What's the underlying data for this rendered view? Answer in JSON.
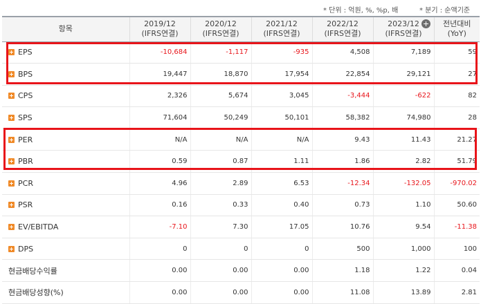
{
  "notes": {
    "unit": "* 단위 : 억원, %, %p, 배",
    "basis": "* 분기 : 순액기준"
  },
  "header": {
    "item": "항목",
    "periods": [
      {
        "year": "2019/12",
        "type": "(IFRS연결)"
      },
      {
        "year": "2020/12",
        "type": "(IFRS연결)"
      },
      {
        "year": "2021/12",
        "type": "(IFRS연결)"
      },
      {
        "year": "2022/12",
        "type": "(IFRS연결)"
      },
      {
        "year": "2023/12",
        "type": "(IFRS연결)"
      }
    ],
    "yoy": {
      "line1": "전년대비",
      "line2": "(YoY)"
    }
  },
  "rows": [
    {
      "label": "EPS",
      "values": [
        "-10,684",
        "-1,117",
        "-935",
        "4,508",
        "7,189"
      ],
      "yoy": "59",
      "expand": true
    },
    {
      "label": "BPS",
      "values": [
        "19,447",
        "18,870",
        "17,954",
        "22,854",
        "29,121"
      ],
      "yoy": "27",
      "expand": true
    },
    {
      "label": "CPS",
      "values": [
        "2,326",
        "5,674",
        "3,045",
        "-3,444",
        "-622"
      ],
      "yoy": "82",
      "expand": true
    },
    {
      "label": "SPS",
      "values": [
        "71,604",
        "50,249",
        "50,101",
        "58,382",
        "74,980"
      ],
      "yoy": "28",
      "expand": true
    },
    {
      "label": "PER",
      "values": [
        "N/A",
        "N/A",
        "N/A",
        "9.43",
        "11.43"
      ],
      "yoy": "21.27",
      "expand": true
    },
    {
      "label": "PBR",
      "values": [
        "0.59",
        "0.87",
        "1.11",
        "1.86",
        "2.82"
      ],
      "yoy": "51.79",
      "expand": true
    },
    {
      "label": "PCR",
      "values": [
        "4.96",
        "2.89",
        "6.53",
        "-12.34",
        "-132.05"
      ],
      "yoy": "-970.02",
      "expand": true
    },
    {
      "label": "PSR",
      "values": [
        "0.16",
        "0.33",
        "0.40",
        "0.73",
        "1.10"
      ],
      "yoy": "50.60",
      "expand": true
    },
    {
      "label": "EV/EBITDA",
      "values": [
        "-7.10",
        "7.30",
        "17.05",
        "10.76",
        "9.54"
      ],
      "yoy": "-11.38",
      "expand": true
    },
    {
      "label": "DPS",
      "values": [
        "0",
        "0",
        "0",
        "500",
        "1,000"
      ],
      "yoy": "100",
      "expand": true
    },
    {
      "label": "현금배당수익률",
      "values": [
        "0.00",
        "0.00",
        "0.00",
        "1.18",
        "1.22"
      ],
      "yoy": "0.04",
      "expand": false
    },
    {
      "label": "현금배당성향(%)",
      "values": [
        "0.00",
        "0.00",
        "0.00",
        "11.08",
        "13.89"
      ],
      "yoy": "2.81",
      "expand": false
    }
  ],
  "colors": {
    "negative": "#e8141a",
    "highlight": "#e8141a",
    "expand_icon": "#f08a28"
  }
}
